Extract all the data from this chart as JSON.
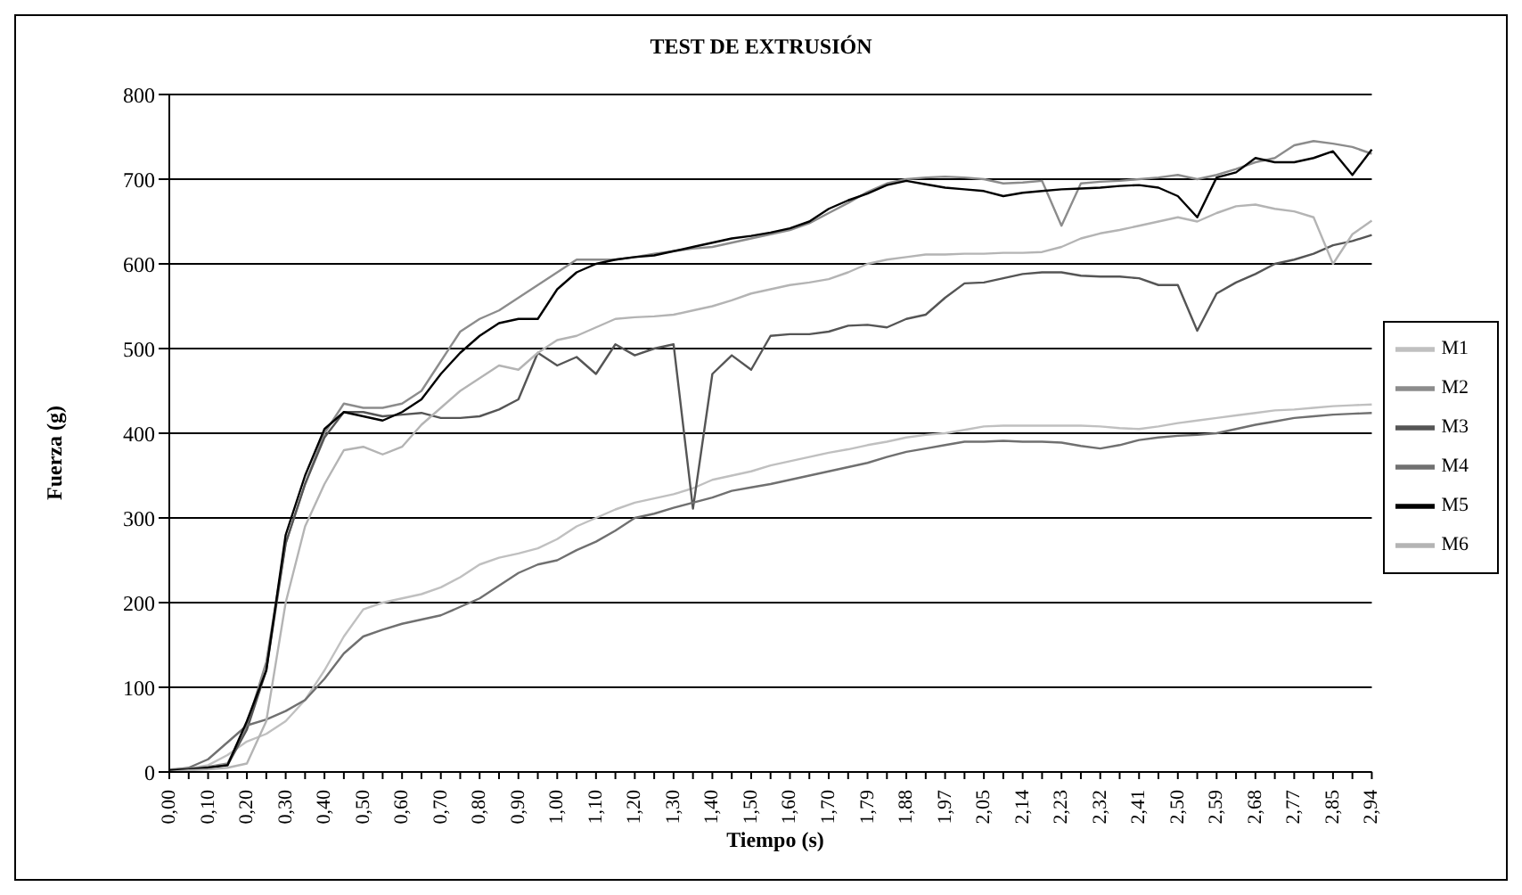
{
  "chart_data": {
    "type": "line",
    "title": "TEST DE EXTRUSIÓN",
    "xlabel": "Tiempo (s)",
    "ylabel": "Fuerza (g)",
    "categories": [
      "0,00",
      null,
      "0,10",
      null,
      "0,20",
      null,
      "0,30",
      null,
      "0,40",
      null,
      "0,50",
      null,
      "0,60",
      null,
      "0,70",
      null,
      "0,80",
      null,
      "0,90",
      null,
      "1,00",
      null,
      "1,10",
      null,
      "1,20",
      null,
      "1,30",
      null,
      "1,40",
      null,
      "1,50",
      null,
      "1,60",
      null,
      "1,70",
      null,
      "1,79",
      null,
      "1,88",
      null,
      "1,97",
      null,
      "2,05",
      null,
      "2,14",
      null,
      "2,23",
      null,
      "2,32",
      null,
      "2,41",
      null,
      "2,50",
      null,
      "2,59",
      null,
      "2,68",
      null,
      "2,77",
      null,
      "2,85",
      null,
      "2,94"
    ],
    "series": [
      {
        "name": "M1",
        "color": "#c0c0c0",
        "values": [
          3,
          4,
          8,
          20,
          36,
          45,
          60,
          85,
          120,
          160,
          192,
          200,
          205,
          210,
          218,
          230,
          245,
          253,
          258,
          264,
          275,
          290,
          300,
          310,
          318,
          323,
          328,
          335,
          345,
          350,
          355,
          362,
          367,
          372,
          377,
          381,
          386,
          390,
          395,
          398,
          400,
          404,
          408,
          409,
          409,
          409,
          409,
          409,
          408,
          406,
          405,
          408,
          412,
          415,
          418,
          421,
          424,
          427,
          428,
          430,
          432,
          433,
          434
        ]
      },
      {
        "name": "M2",
        "color": "#8c8c8c",
        "values": [
          3,
          4,
          6,
          10,
          55,
          130,
          270,
          340,
          400,
          435,
          430,
          430,
          435,
          450,
          485,
          520,
          535,
          545,
          560,
          575,
          590,
          605,
          605,
          605,
          608,
          612,
          615,
          618,
          620,
          625,
          630,
          635,
          640,
          648,
          660,
          672,
          685,
          695,
          700,
          702,
          703,
          702,
          700,
          695,
          696,
          698,
          645,
          695,
          697,
          698,
          700,
          702,
          705,
          700,
          705,
          712,
          720,
          725,
          740,
          745,
          742,
          738,
          730
        ]
      },
      {
        "name": "M3",
        "color": "#555555",
        "values": [
          2,
          3,
          5,
          8,
          50,
          120,
          270,
          340,
          395,
          425,
          425,
          420,
          422,
          424,
          418,
          418,
          420,
          428,
          440,
          495,
          480,
          490,
          470,
          505,
          492,
          500,
          505,
          311,
          470,
          492,
          475,
          515,
          517,
          517,
          520,
          527,
          528,
          525,
          535,
          540,
          560,
          577,
          578,
          583,
          588,
          590,
          590,
          586,
          585,
          585,
          583,
          575,
          575,
          521,
          565,
          578,
          588,
          600,
          605,
          612,
          622,
          627,
          634
        ]
      },
      {
        "name": "M4",
        "color": "#707070",
        "values": [
          2,
          5,
          15,
          35,
          55,
          62,
          72,
          85,
          110,
          140,
          160,
          168,
          175,
          180,
          185,
          195,
          205,
          220,
          235,
          245,
          250,
          262,
          272,
          285,
          300,
          305,
          312,
          318,
          324,
          332,
          336,
          340,
          345,
          350,
          355,
          360,
          365,
          372,
          378,
          382,
          386,
          390,
          390,
          391,
          390,
          390,
          389,
          385,
          382,
          386,
          392,
          395,
          397,
          398,
          400,
          405,
          410,
          414,
          418,
          420,
          422,
          423,
          424
        ]
      },
      {
        "name": "M5",
        "color": "#000000",
        "values": [
          2,
          3,
          5,
          8,
          60,
          120,
          280,
          350,
          405,
          425,
          420,
          415,
          425,
          440,
          470,
          495,
          515,
          530,
          535,
          535,
          570,
          590,
          600,
          605,
          608,
          610,
          615,
          620,
          625,
          630,
          633,
          637,
          642,
          650,
          665,
          675,
          683,
          693,
          698,
          694,
          690,
          688,
          686,
          680,
          684,
          686,
          688,
          689,
          690,
          692,
          693,
          690,
          680,
          655,
          702,
          708,
          725,
          720,
          720,
          725,
          733,
          705,
          735
        ]
      },
      {
        "name": "M6",
        "color": "#b4b4b4",
        "values": [
          0,
          2,
          3,
          5,
          10,
          60,
          200,
          290,
          340,
          380,
          384,
          375,
          384,
          410,
          430,
          450,
          465,
          480,
          475,
          495,
          510,
          515,
          525,
          535,
          537,
          538,
          540,
          545,
          550,
          557,
          565,
          570,
          575,
          578,
          582,
          590,
          600,
          605,
          608,
          611,
          611,
          612,
          612,
          613,
          613,
          614,
          620,
          630,
          636,
          640,
          645,
          650,
          655,
          650,
          660,
          668,
          670,
          665,
          662,
          655,
          600,
          635,
          651
        ]
      }
    ],
    "ylim": [
      0,
      800
    ],
    "yticks": [
      0,
      100,
      200,
      300,
      400,
      500,
      600,
      700,
      800
    ],
    "grid": "y",
    "legend": "right",
    "marker": "none",
    "line_style": "solid"
  }
}
